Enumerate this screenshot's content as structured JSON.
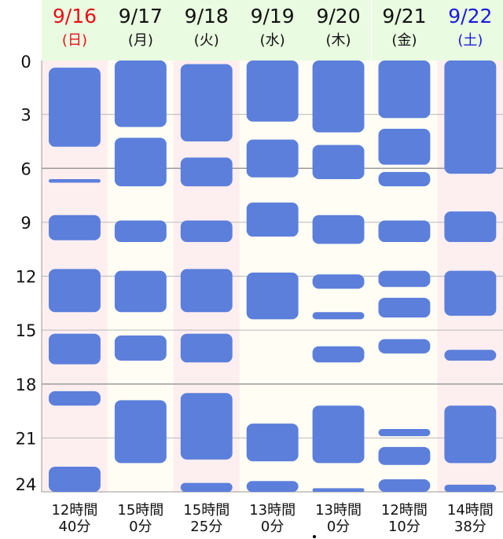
{
  "chart_data": {
    "type": "timeline",
    "title": "",
    "ylabel": "",
    "y_ticks": [
      0,
      3,
      6,
      9,
      12,
      15,
      18,
      21,
      24
    ],
    "ylim": [
      0,
      24
    ],
    "grid": "horizontal every 3 hours (darker at 6 and 18)",
    "colors": {
      "block": "#5b7fdb",
      "weekday_bg": "#fffdf4",
      "weekend_bg": "#fdeef0",
      "header_bg": "#e9fbe0",
      "sunday_text": "#e8101a",
      "saturday_text": "#1a1ae0",
      "weekday_text": "#111111"
    },
    "days": [
      {
        "date": "9/16",
        "weekday": "(日)",
        "type": "sun",
        "total_line1": "12時間",
        "total_line2": "40分",
        "blocks": [
          [
            0.4,
            4.8
          ],
          [
            6.6,
            6.8
          ],
          [
            8.6,
            10.0
          ],
          [
            11.6,
            14.0
          ],
          [
            15.2,
            16.9
          ],
          [
            18.4,
            19.2
          ],
          [
            22.6,
            24.0
          ]
        ]
      },
      {
        "date": "9/17",
        "weekday": "(月)",
        "type": "weekday",
        "total_line1": "15時間",
        "total_line2": "0分",
        "blocks": [
          [
            0.0,
            3.7
          ],
          [
            4.3,
            7.0
          ],
          [
            8.9,
            10.1
          ],
          [
            11.7,
            14.0
          ],
          [
            15.3,
            16.7
          ],
          [
            18.9,
            22.4
          ]
        ]
      },
      {
        "date": "9/18",
        "weekday": "(火)",
        "type": "holiday",
        "total_line1": "15時間",
        "total_line2": "25分",
        "blocks": [
          [
            0.2,
            4.5
          ],
          [
            5.4,
            7.0
          ],
          [
            8.9,
            10.1
          ],
          [
            11.6,
            14.0
          ],
          [
            15.2,
            16.8
          ],
          [
            18.5,
            22.2
          ],
          [
            23.5,
            24.0
          ]
        ]
      },
      {
        "date": "9/19",
        "weekday": "(水)",
        "type": "weekday",
        "total_line1": "13時間",
        "total_line2": "0分",
        "blocks": [
          [
            0.0,
            3.4
          ],
          [
            4.4,
            6.5
          ],
          [
            7.9,
            9.8
          ],
          [
            11.8,
            14.4
          ],
          [
            20.2,
            22.3
          ],
          [
            23.4,
            24.0
          ]
        ]
      },
      {
        "date": "9/20",
        "weekday": "(木)",
        "type": "weekday",
        "total_line1": "13時間",
        "total_line2": "0分",
        "blocks": [
          [
            0.0,
            4.0
          ],
          [
            4.7,
            6.6
          ],
          [
            8.6,
            10.2
          ],
          [
            11.9,
            12.7
          ],
          [
            14.0,
            14.4
          ],
          [
            15.9,
            16.8
          ],
          [
            19.2,
            22.4
          ],
          [
            23.8,
            24.0
          ]
        ]
      },
      {
        "date": "9/21",
        "weekday": "(金)",
        "type": "weekday",
        "total_line1": "12時間",
        "total_line2": "10分",
        "blocks": [
          [
            0.0,
            3.2
          ],
          [
            3.8,
            5.8
          ],
          [
            6.2,
            7.0
          ],
          [
            8.9,
            10.1
          ],
          [
            11.7,
            12.6
          ],
          [
            13.2,
            14.3
          ],
          [
            15.5,
            16.3
          ],
          [
            20.5,
            20.9
          ],
          [
            21.5,
            22.5
          ],
          [
            23.3,
            24.0
          ]
        ]
      },
      {
        "date": "9/22",
        "weekday": "(土)",
        "type": "sat",
        "total_line1": "14時間",
        "total_line2": "38分",
        "blocks": [
          [
            0.0,
            6.3
          ],
          [
            8.4,
            10.1
          ],
          [
            11.7,
            14.2
          ],
          [
            16.1,
            16.7
          ],
          [
            19.2,
            22.4
          ],
          [
            23.6,
            24.0
          ]
        ]
      }
    ]
  }
}
